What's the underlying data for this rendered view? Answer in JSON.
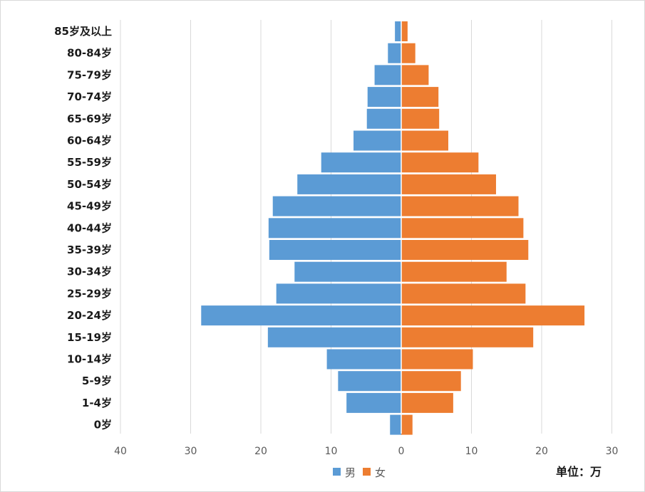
{
  "chart_data": {
    "type": "bar",
    "orientation": "horizontal-population-pyramid",
    "categories": [
      "0岁",
      "1-4岁",
      "5-9岁",
      "10-14岁",
      "15-19岁",
      "20-24岁",
      "25-29岁",
      "30-34岁",
      "35-39岁",
      "40-44岁",
      "45-49岁",
      "50-54岁",
      "55-59岁",
      "60-64岁",
      "65-69岁",
      "70-74岁",
      "75-79岁",
      "80-84岁",
      "85岁及以上"
    ],
    "series": [
      {
        "name": "男",
        "color": "#5B9BD5",
        "side": "left",
        "values": [
          1.6,
          7.8,
          9,
          10.6,
          19,
          28.5,
          17.8,
          15.2,
          18.8,
          18.9,
          18.3,
          14.8,
          11.4,
          6.8,
          4.9,
          4.8,
          3.8,
          1.9,
          0.9
        ]
      },
      {
        "name": "女",
        "color": "#ED7D31",
        "side": "right",
        "values": [
          1.6,
          7.4,
          8.5,
          10.2,
          18.8,
          26.1,
          17.7,
          15,
          18.1,
          17.4,
          16.7,
          13.5,
          11,
          6.7,
          5.4,
          5.3,
          3.9,
          2,
          0.9
        ]
      }
    ],
    "x_ticks": [
      "40",
      "30",
      "20",
      "10",
      "0",
      "10",
      "20",
      "30"
    ],
    "xlim": [
      -40,
      30
    ],
    "grid": true,
    "legend_position": "bottom-center",
    "unit_label": "单位：万"
  }
}
